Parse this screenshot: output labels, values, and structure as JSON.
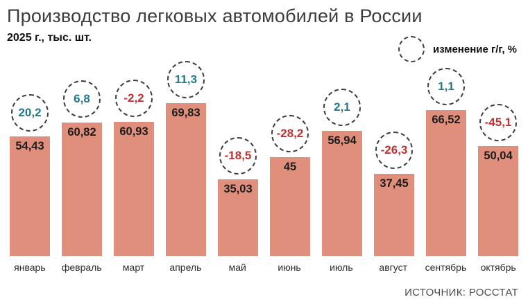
{
  "header": {
    "title": "Производство легковых автомобилей в России",
    "subtitle": "2025 г., тыс. шт."
  },
  "legend": {
    "label": "изменение г/г, %"
  },
  "source": "ИСТОЧНИК: РОССТАТ",
  "colors": {
    "bar": "#df8f7c",
    "positive": "#24788a",
    "negative": "#c52f2f"
  },
  "chart_data": {
    "type": "bar",
    "title": "Производство легковых автомобилей в России",
    "subtitle": "2025 г., тыс. шт.",
    "unit": "тыс. шт.",
    "categories": [
      "январь",
      "февраль",
      "март",
      "апрель",
      "май",
      "июнь",
      "июль",
      "август",
      "сентябрь",
      "октябрь"
    ],
    "values": [
      54.43,
      60.82,
      60.93,
      69.83,
      35.03,
      45,
      56.94,
      37.45,
      66.52,
      50.04
    ],
    "value_labels": [
      "54,43",
      "60,82",
      "60,93",
      "69,83",
      "35,03",
      "45",
      "56,94",
      "37,45",
      "66,52",
      "50,04"
    ],
    "changes_pct": [
      20.2,
      6.8,
      -2.2,
      11.3,
      -18.5,
      -28.2,
      2.1,
      -26.3,
      1.1,
      -45.1
    ],
    "change_labels": [
      "20,2",
      "6,8",
      "-2,2",
      "11,3",
      "-18,5",
      "-28,2",
      "2,1",
      "-26,3",
      "1,1",
      "-45,1"
    ],
    "change_legend": "изменение г/г, %",
    "ylim": [
      0,
      75
    ],
    "grid": false,
    "legend_position": "top-right"
  }
}
